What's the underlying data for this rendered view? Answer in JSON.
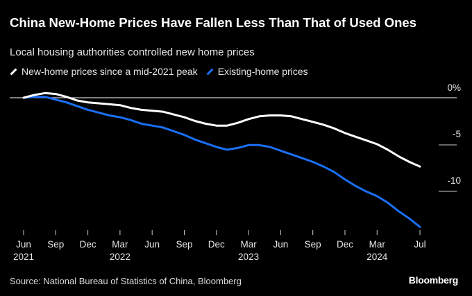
{
  "title": "China New-Home Prices Have Fallen Less Than That of Used Ones",
  "subtitle": "Local housing authorities controlled new home prices",
  "source": "Source: National Bureau of Statistics of China, Bloomberg",
  "logo": "Bloomberg",
  "chart_data": {
    "type": "line",
    "title": "China New-Home Prices Have Fallen Less Than That of Used Ones",
    "ylabel": "%",
    "ylim": [
      -14.5,
      1
    ],
    "y_ticks": [
      {
        "value": 0,
        "label": "0%"
      },
      {
        "value": -5,
        "label": "-5"
      },
      {
        "value": -10,
        "label": "-10"
      }
    ],
    "x_start": "2021-06",
    "x_end": "2024-07",
    "x_ticks": [
      {
        "m": 0,
        "label": "Jun",
        "year": "2021"
      },
      {
        "m": 3,
        "label": "Sep",
        "year": ""
      },
      {
        "m": 6,
        "label": "Dec",
        "year": ""
      },
      {
        "m": 9,
        "label": "Mar",
        "year": "2022"
      },
      {
        "m": 12,
        "label": "Jun",
        "year": ""
      },
      {
        "m": 15,
        "label": "Sep",
        "year": ""
      },
      {
        "m": 18,
        "label": "Dec",
        "year": ""
      },
      {
        "m": 21,
        "label": "Mar",
        "year": "2023"
      },
      {
        "m": 24,
        "label": "Jun",
        "year": ""
      },
      {
        "m": 27,
        "label": "Sep",
        "year": ""
      },
      {
        "m": 30,
        "label": "Dec",
        "year": ""
      },
      {
        "m": 33,
        "label": "Mar",
        "year": "2024"
      },
      {
        "m": 37,
        "label": "Jul",
        "year": ""
      }
    ],
    "legend_placement": "top-left",
    "series": [
      {
        "name": "New-home prices since a mid-2021 peak",
        "color": "#ffffff",
        "values": [
          0,
          0.3,
          0.5,
          0.4,
          0.1,
          -0.3,
          -0.5,
          -0.6,
          -0.7,
          -0.8,
          -1.1,
          -1.3,
          -1.4,
          -1.5,
          -1.8,
          -2.1,
          -2.5,
          -2.8,
          -3.0,
          -3.0,
          -2.7,
          -2.3,
          -2.0,
          -1.9,
          -1.9,
          -2.0,
          -2.3,
          -2.6,
          -2.9,
          -3.3,
          -3.8,
          -4.2,
          -4.6,
          -5.0,
          -5.6,
          -6.3,
          -6.9,
          -7.4
        ]
      },
      {
        "name": "Existing-home prices",
        "color": "#1a6ff5",
        "values": [
          0,
          0.1,
          0.1,
          -0.2,
          -0.5,
          -0.9,
          -1.3,
          -1.6,
          -1.9,
          -2.1,
          -2.4,
          -2.8,
          -3.0,
          -3.2,
          -3.6,
          -4.0,
          -4.5,
          -4.9,
          -5.3,
          -5.6,
          -5.4,
          -5.1,
          -5.1,
          -5.3,
          -5.7,
          -6.1,
          -6.5,
          -6.9,
          -7.4,
          -8.0,
          -8.8,
          -9.5,
          -10.1,
          -10.6,
          -11.3,
          -12.2,
          -13.0,
          -13.9
        ]
      }
    ]
  }
}
